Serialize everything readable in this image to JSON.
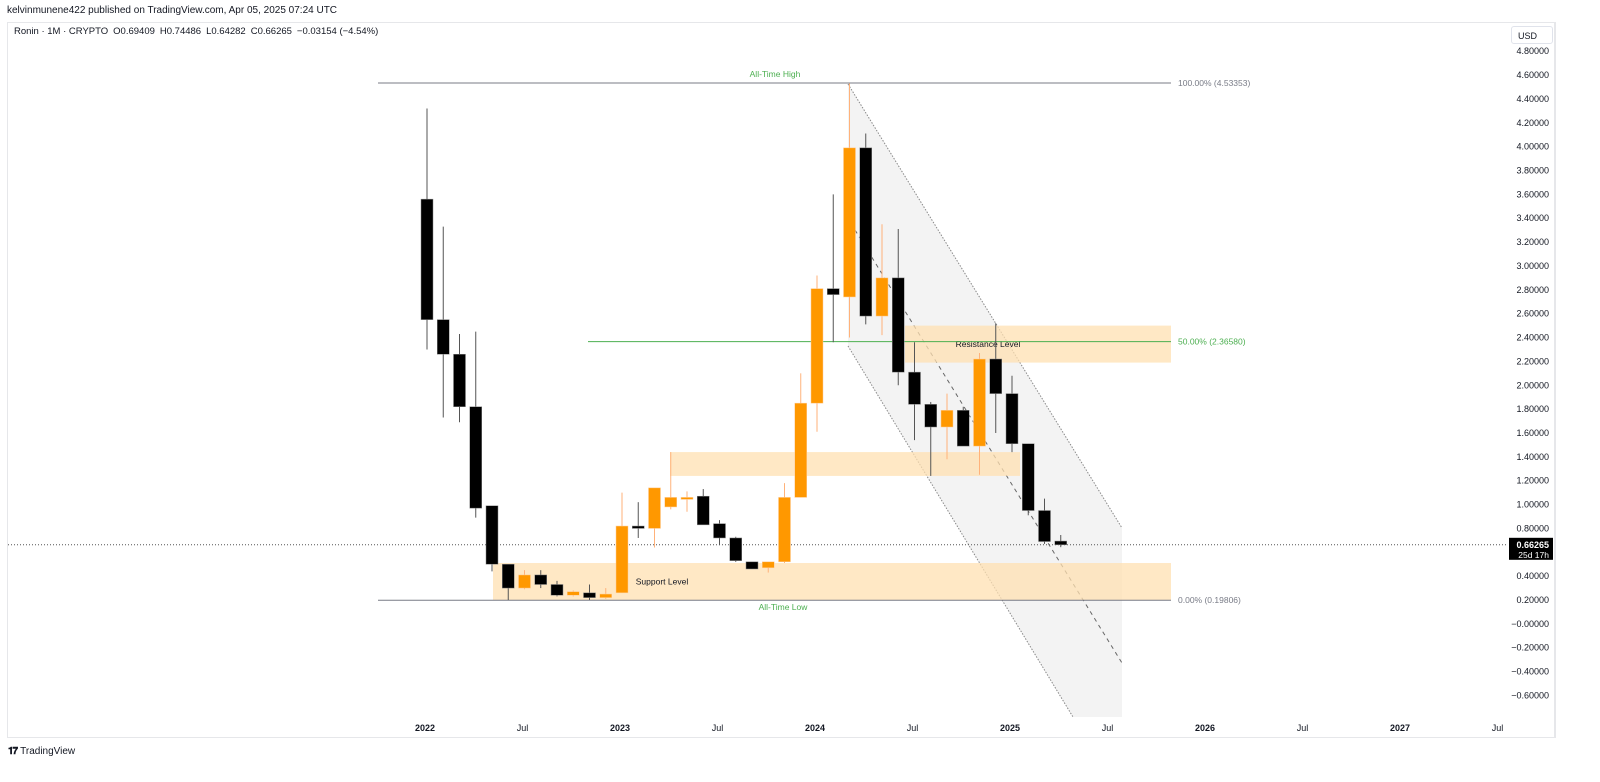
{
  "header": {
    "published": "kelvinmunene422 published on TradingView.com, Apr 05, 2025 07:24 UTC"
  },
  "legend": {
    "symbol": "Ronin · 1M · CRYPTO",
    "open": "O0.69409",
    "high": "H0.74486",
    "low": "L0.64282",
    "close": "C0.66265",
    "change": "−0.03154 (−4.54%)"
  },
  "price_axis": {
    "currency": "USD",
    "last_price": "0.66265",
    "countdown": "25d 17h"
  },
  "footer": {
    "brand": "TradingView",
    "logo": "tradingview-logo"
  },
  "colors": {
    "up": "#ff9800",
    "down": "#000000",
    "zone": "#ffe0b2",
    "fib_green": "#4caf50",
    "channel_fill": "#f0f0f0",
    "price_label_bg": "#000000"
  },
  "chart_data": {
    "type": "candlestick",
    "title": "Ronin · 1M · CRYPTO",
    "ylabel": "USD",
    "ylim": [
      -0.7,
      4.9
    ],
    "y_ticks": [
      "4.80000",
      "4.60000",
      "4.40000",
      "4.20000",
      "4.00000",
      "3.80000",
      "3.60000",
      "3.40000",
      "3.20000",
      "3.00000",
      "2.80000",
      "2.60000",
      "2.40000",
      "2.20000",
      "2.00000",
      "1.80000",
      "1.60000",
      "1.40000",
      "1.20000",
      "1.00000",
      "0.80000",
      "0.40000",
      "0.20000",
      "−0.00000",
      "−0.20000",
      "−0.40000",
      "−0.60000"
    ],
    "x_ticks": [
      "2022",
      "Jul",
      "2023",
      "Jul",
      "2024",
      "Jul",
      "2025",
      "Jul",
      "2026",
      "Jul",
      "2027",
      "Jul"
    ],
    "candles": [
      {
        "t": "2022-01",
        "o": 3.56,
        "h": 4.32,
        "l": 2.3,
        "c": 2.55
      },
      {
        "t": "2022-02",
        "o": 2.55,
        "h": 3.33,
        "l": 1.73,
        "c": 2.26
      },
      {
        "t": "2022-03",
        "o": 2.26,
        "h": 2.43,
        "l": 1.69,
        "c": 1.82
      },
      {
        "t": "2022-04",
        "o": 1.82,
        "h": 2.45,
        "l": 0.89,
        "c": 0.97
      },
      {
        "t": "2022-05",
        "o": 0.99,
        "h": 0.99,
        "l": 0.44,
        "c": 0.5
      },
      {
        "t": "2022-06",
        "o": 0.5,
        "h": 0.5,
        "l": 0.2,
        "c": 0.3
      },
      {
        "t": "2022-07",
        "o": 0.3,
        "h": 0.45,
        "l": 0.29,
        "c": 0.41
      },
      {
        "t": "2022-08",
        "o": 0.41,
        "h": 0.45,
        "l": 0.3,
        "c": 0.33
      },
      {
        "t": "2022-09",
        "o": 0.33,
        "h": 0.36,
        "l": 0.23,
        "c": 0.24
      },
      {
        "t": "2022-10",
        "o": 0.24,
        "h": 0.28,
        "l": 0.23,
        "c": 0.27
      },
      {
        "t": "2022-11",
        "o": 0.26,
        "h": 0.33,
        "l": 0.2,
        "c": 0.22
      },
      {
        "t": "2022-12",
        "o": 0.22,
        "h": 0.3,
        "l": 0.21,
        "c": 0.25
      },
      {
        "t": "2023-01",
        "o": 0.26,
        "h": 1.1,
        "l": 0.26,
        "c": 0.82
      },
      {
        "t": "2023-02",
        "o": 0.82,
        "h": 1.02,
        "l": 0.72,
        "c": 0.8
      },
      {
        "t": "2023-03",
        "o": 0.8,
        "h": 1.12,
        "l": 0.64,
        "c": 1.14
      },
      {
        "t": "2023-04",
        "o": 0.98,
        "h": 1.44,
        "l": 0.96,
        "c": 1.06
      },
      {
        "t": "2023-05",
        "o": 1.05,
        "h": 1.11,
        "l": 0.94,
        "c": 1.06
      },
      {
        "t": "2023-06",
        "o": 1.07,
        "h": 1.13,
        "l": 0.85,
        "c": 0.83
      },
      {
        "t": "2023-07",
        "o": 0.84,
        "h": 0.87,
        "l": 0.66,
        "c": 0.72
      },
      {
        "t": "2023-08",
        "o": 0.72,
        "h": 0.73,
        "l": 0.52,
        "c": 0.53
      },
      {
        "t": "2023-09",
        "o": 0.52,
        "h": 0.52,
        "l": 0.46,
        "c": 0.46
      },
      {
        "t": "2023-10",
        "o": 0.47,
        "h": 0.52,
        "l": 0.43,
        "c": 0.52
      },
      {
        "t": "2023-11",
        "o": 0.52,
        "h": 1.18,
        "l": 0.51,
        "c": 1.06
      },
      {
        "t": "2023-12",
        "o": 1.06,
        "h": 2.1,
        "l": 1.06,
        "c": 1.85
      },
      {
        "t": "2024-01",
        "o": 1.85,
        "h": 2.92,
        "l": 1.61,
        "c": 2.81
      },
      {
        "t": "2024-02",
        "o": 2.81,
        "h": 3.6,
        "l": 2.36,
        "c": 2.76
      },
      {
        "t": "2024-03",
        "o": 2.74,
        "h": 4.53,
        "l": 2.4,
        "c": 3.99
      },
      {
        "t": "2024-04",
        "o": 3.99,
        "h": 4.11,
        "l": 2.51,
        "c": 2.58
      },
      {
        "t": "2024-05",
        "o": 2.58,
        "h": 3.35,
        "l": 2.42,
        "c": 2.9
      },
      {
        "t": "2024-06",
        "o": 2.9,
        "h": 3.31,
        "l": 2.0,
        "c": 2.11
      },
      {
        "t": "2024-07",
        "o": 2.11,
        "h": 2.36,
        "l": 1.54,
        "c": 1.84
      },
      {
        "t": "2024-08",
        "o": 1.84,
        "h": 1.86,
        "l": 1.24,
        "c": 1.65
      },
      {
        "t": "2024-09",
        "o": 1.65,
        "h": 1.93,
        "l": 1.38,
        "c": 1.79
      },
      {
        "t": "2024-10",
        "o": 1.79,
        "h": 1.82,
        "l": 1.5,
        "c": 1.49
      },
      {
        "t": "2024-11",
        "o": 1.49,
        "h": 2.27,
        "l": 1.25,
        "c": 2.22
      },
      {
        "t": "2024-12",
        "o": 2.22,
        "h": 2.52,
        "l": 1.6,
        "c": 1.93
      },
      {
        "t": "2025-01",
        "o": 1.93,
        "h": 2.08,
        "l": 1.44,
        "c": 1.51
      },
      {
        "t": "2025-02",
        "o": 1.51,
        "h": 1.51,
        "l": 0.91,
        "c": 0.95
      },
      {
        "t": "2025-03",
        "o": 0.95,
        "h": 1.05,
        "l": 0.67,
        "c": 0.69
      },
      {
        "t": "2025-04",
        "o": 0.69409,
        "h": 0.74486,
        "l": 0.64282,
        "c": 0.66265
      }
    ],
    "annotations": [
      {
        "type": "hline",
        "label": "All-Time High",
        "price": 4.53353,
        "fib_label": "100.00% (4.53353)"
      },
      {
        "type": "hline",
        "label": "All-Time Low",
        "price": 0.19806,
        "fib_label": "0.00% (0.19806)"
      },
      {
        "type": "hline",
        "label": "",
        "price": 2.3658,
        "fib_label": "50.00% (2.36580)"
      },
      {
        "type": "zone",
        "label": "Resistance Level",
        "top": 2.5,
        "bottom": 2.19
      },
      {
        "type": "zone",
        "label": "",
        "top": 1.44,
        "bottom": 1.24
      },
      {
        "type": "zone",
        "label": "Support Level",
        "top": 0.51,
        "bottom": 0.2
      },
      {
        "type": "channel",
        "label": "descending parallel channel"
      }
    ]
  }
}
